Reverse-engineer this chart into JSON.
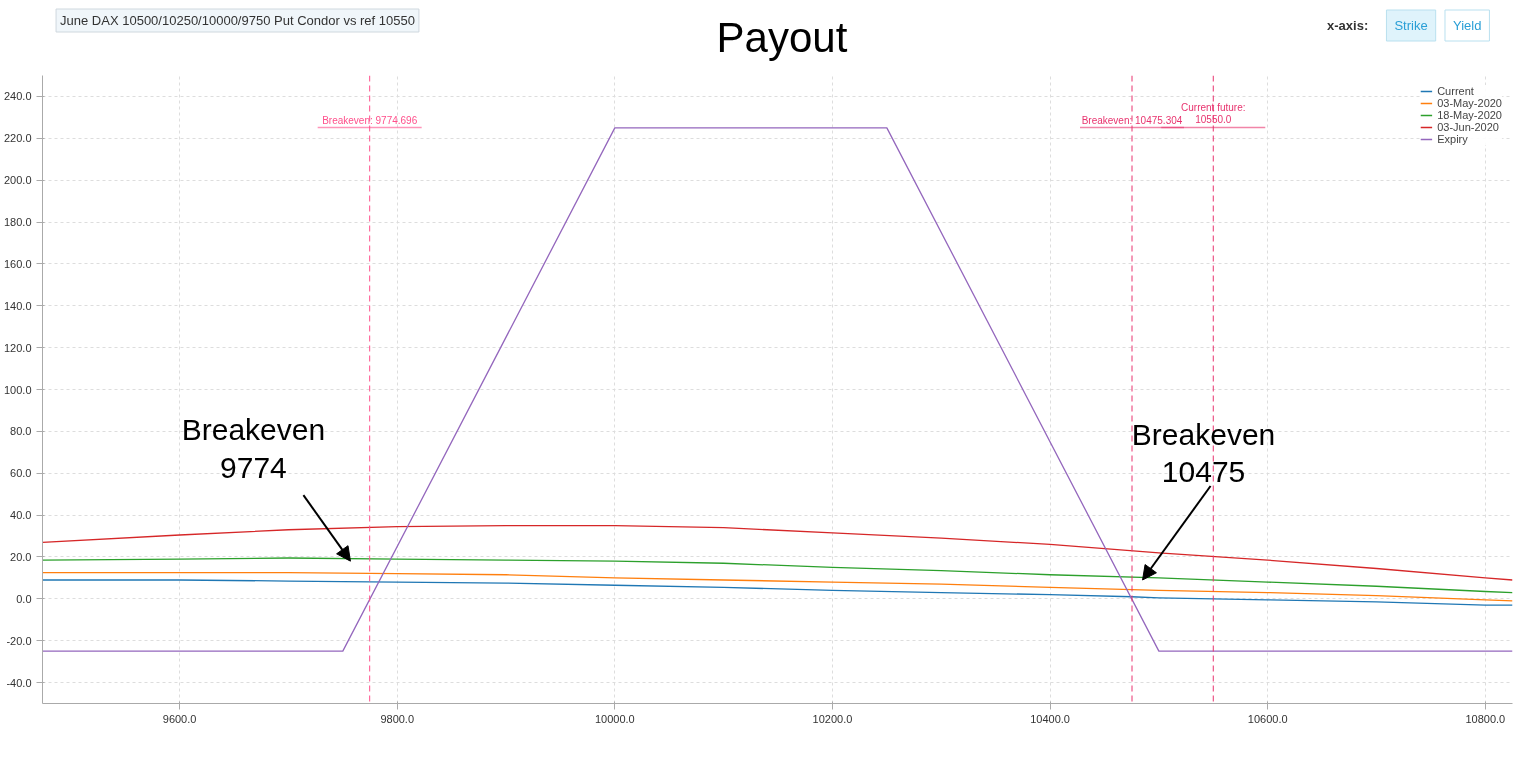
{
  "chart_data": {
    "type": "line",
    "title": "Payout",
    "subtitle": "June DAX 10500/10250/10000/9750 Put Condor vs ref 10550",
    "xlim": [
      9474,
      10825
    ],
    "ylim": [
      -50,
      250
    ],
    "xticks": [
      {
        "value": 9600,
        "label": "9600.0"
      },
      {
        "value": 9800,
        "label": "9800.0"
      },
      {
        "value": 10000,
        "label": "10000.0"
      },
      {
        "value": 10200,
        "label": "10200.0"
      },
      {
        "value": 10400,
        "label": "10400.0"
      },
      {
        "value": 10600,
        "label": "10600.0"
      },
      {
        "value": 10800,
        "label": "10800.0"
      }
    ],
    "yticks": [
      {
        "value": -40,
        "label": "-40.0"
      },
      {
        "value": -20,
        "label": "-20.0"
      },
      {
        "value": 0,
        "label": "0.0"
      },
      {
        "value": 20,
        "label": "20.0"
      },
      {
        "value": 40,
        "label": "40.0"
      },
      {
        "value": 60,
        "label": "60.0"
      },
      {
        "value": 80,
        "label": "80.0"
      },
      {
        "value": 100,
        "label": "100.0"
      },
      {
        "value": 120,
        "label": "120.0"
      },
      {
        "value": 140,
        "label": "140.0"
      },
      {
        "value": 160,
        "label": "160.0"
      },
      {
        "value": 180,
        "label": "180.0"
      },
      {
        "value": 200,
        "label": "200.0"
      },
      {
        "value": 220,
        "label": "220.0"
      },
      {
        "value": 240,
        "label": "240.0"
      }
    ],
    "grid": true,
    "legend": "top right",
    "line_style": "solid",
    "series": [
      {
        "name": "Current",
        "color": "#1f77b4",
        "x": [
          9474,
          9600,
          9700,
          9800,
          9900,
          10000,
          10100,
          10200,
          10300,
          10400,
          10475,
          10500,
          10600,
          10700,
          10800,
          10825
        ],
        "values": [
          9,
          9,
          8.5,
          8,
          7.5,
          6.5,
          5.5,
          4,
          3,
          2,
          1,
          0.5,
          -0.5,
          -1.5,
          -3,
          -3
        ]
      },
      {
        "name": "03-May-2020",
        "color": "#ff7f0e",
        "x": [
          9474,
          9600,
          9700,
          9800,
          9900,
          10000,
          10100,
          10200,
          10300,
          10400,
          10500,
          10600,
          10700,
          10800,
          10825
        ],
        "values": [
          12.5,
          12.5,
          12.5,
          12,
          11.5,
          10,
          9,
          8,
          7,
          5.5,
          4,
          3,
          1.5,
          -0.5,
          -1
        ]
      },
      {
        "name": "18-May-2020",
        "color": "#2ca02c",
        "x": [
          9474,
          9600,
          9700,
          9800,
          9900,
          10000,
          10100,
          10200,
          10300,
          10400,
          10500,
          10600,
          10700,
          10800,
          10825
        ],
        "values": [
          18.5,
          19,
          19.5,
          19,
          18.5,
          18,
          17,
          15,
          13.5,
          11.5,
          10,
          8,
          6,
          3.5,
          3
        ]
      },
      {
        "name": "03-Jun-2020",
        "color": "#d62728",
        "x": [
          9474,
          9600,
          9700,
          9800,
          9900,
          10000,
          10100,
          10200,
          10300,
          10400,
          10500,
          10600,
          10700,
          10800,
          10825
        ],
        "values": [
          27,
          30.5,
          33,
          34.5,
          35,
          35,
          34,
          31.5,
          29,
          26,
          22,
          18.5,
          14.5,
          10,
          9
        ]
      },
      {
        "name": "Expiry",
        "color": "#9467bd",
        "x": [
          9474,
          9750,
          10000,
          10250,
          10500,
          10825
        ],
        "values": [
          -25,
          -25,
          225,
          225,
          -25,
          -25
        ]
      }
    ],
    "ref_lines": [
      {
        "axis": "x",
        "value": 9774.696,
        "label": "Breakeven: 9774.696",
        "color": "#ff4f8b",
        "line_style": "dashed"
      },
      {
        "axis": "x",
        "value": 10475.304,
        "label": "Breakeven: 10475.304",
        "color": "#e8336e",
        "line_style": "dashed"
      },
      {
        "axis": "x",
        "value": 10550,
        "label": "Current future:\n10550.0",
        "color": "#e8336e",
        "line_style": "dashed"
      }
    ],
    "annotations": [
      {
        "text": "Breakeven\n9774",
        "x": 9757,
        "y": 18
      },
      {
        "text": "Breakeven\n10475",
        "x": 10485,
        "y": 9
      },
      "x-axis:",
      "Strike",
      "Yield"
    ]
  }
}
